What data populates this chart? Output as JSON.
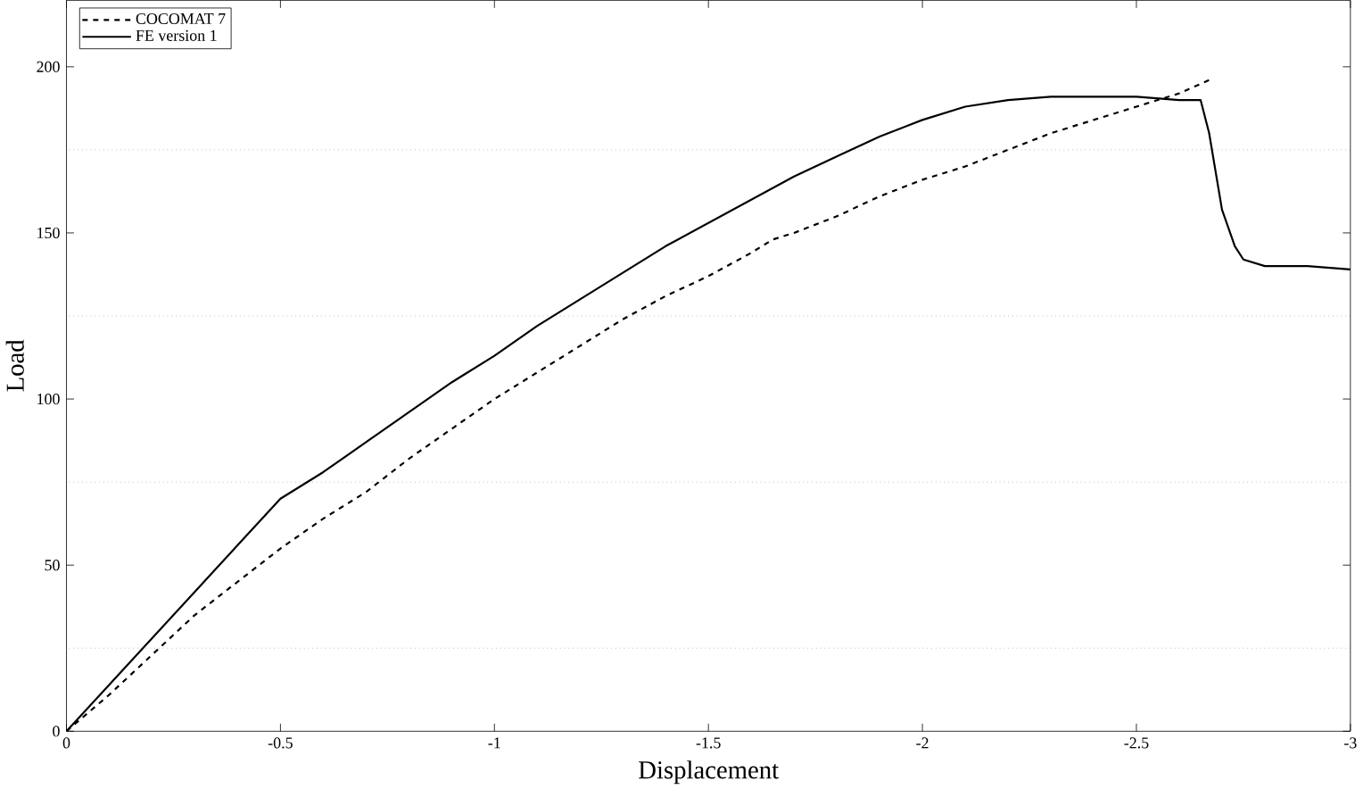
{
  "chart_data": {
    "type": "line",
    "xlabel": "Displacement",
    "ylabel": "Load",
    "xlim": [
      0,
      -3
    ],
    "ylim": [
      0,
      220
    ],
    "xticks": [
      0,
      -0.5,
      -1,
      -1.5,
      -2,
      -2.5,
      -3
    ],
    "yticks": [
      0,
      50,
      100,
      150,
      200
    ],
    "grid": false,
    "legend": "top left",
    "marker": "none",
    "ref_lines": [
      {
        "axis": "y",
        "value": 25,
        "line_style": "dotted",
        "color": "#999999"
      },
      {
        "axis": "y",
        "value": 75,
        "line_style": "dotted",
        "color": "#999999"
      },
      {
        "axis": "y",
        "value": 125,
        "line_style": "dotted",
        "color": "#999999"
      },
      {
        "axis": "y",
        "value": 175,
        "line_style": "dotted",
        "color": "#999999"
      }
    ],
    "series": [
      {
        "name": "COCOMAT 7",
        "color": "#000000",
        "line_style": "dashed",
        "x": [
          0,
          -0.1,
          -0.2,
          -0.3,
          -0.4,
          -0.5,
          -0.6,
          -0.7,
          -0.8,
          -0.9,
          -1,
          -1.1,
          -1.2,
          -1.3,
          -1.4,
          -1.5,
          -1.6,
          -1.65,
          -1.7,
          -1.8,
          -1.9,
          -2,
          -2.1,
          -2.2,
          -2.3,
          -2.4,
          -2.5,
          -2.6,
          -2.67
        ],
        "values": [
          0,
          11,
          23,
          35,
          45,
          55,
          64,
          72,
          82,
          91,
          100,
          108,
          116,
          124,
          131,
          137,
          144,
          148,
          150,
          155,
          161,
          166,
          170,
          175,
          180,
          184,
          188,
          192,
          196
        ]
      },
      {
        "name": "FE version 1",
        "color": "#000000",
        "line_style": "solid",
        "x": [
          0,
          -0.1,
          -0.2,
          -0.3,
          -0.4,
          -0.5,
          -0.6,
          -0.7,
          -0.8,
          -0.9,
          -1,
          -1.1,
          -1.2,
          -1.3,
          -1.4,
          -1.5,
          -1.6,
          -1.7,
          -1.8,
          -1.9,
          -2,
          -2.1,
          -2.2,
          -2.3,
          -2.4,
          -2.5,
          -2.6,
          -2.65,
          -2.67,
          -2.7,
          -2.73,
          -2.75,
          -2.8,
          -2.9,
          -3
        ],
        "values": [
          0,
          14,
          28,
          42,
          56,
          70,
          78,
          87,
          96,
          105,
          113,
          122,
          130,
          138,
          146,
          153,
          160,
          167,
          173,
          179,
          184,
          188,
          190,
          191,
          191,
          191,
          190,
          190,
          180,
          157,
          146,
          142,
          140,
          140,
          139
        ]
      }
    ]
  }
}
